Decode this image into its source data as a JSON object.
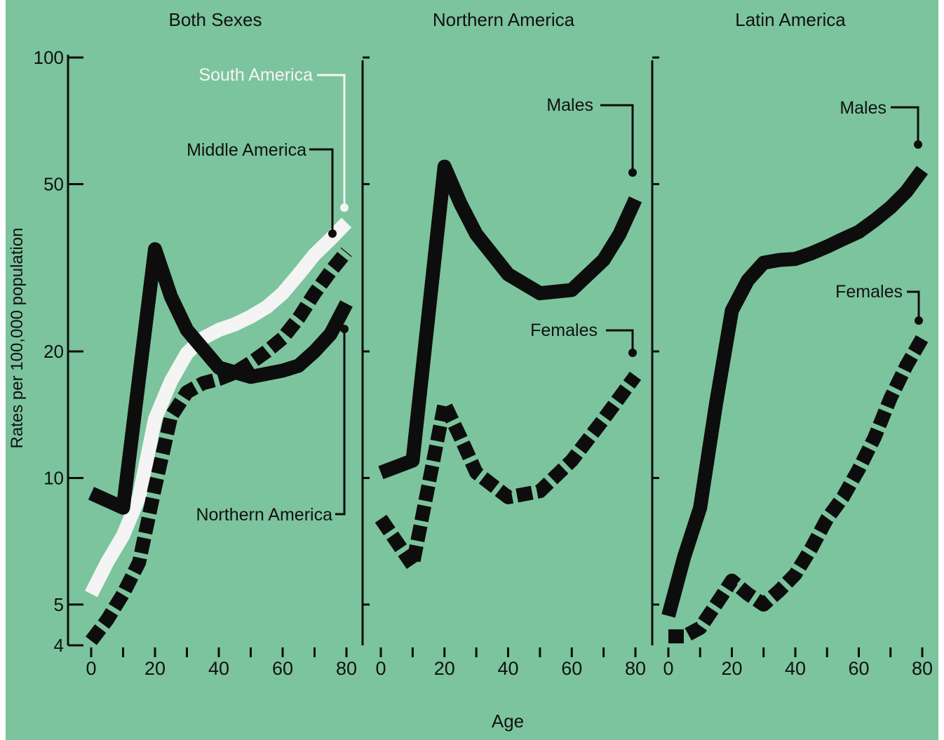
{
  "figure": {
    "x_axis_label": "Age",
    "y_axis_label": "Rates per 100,000 population",
    "background_color": "#7cc49d",
    "ink_color": "#0d0d0d",
    "white_color": "#f4f4f4",
    "dashed_color": "#0d0d0d"
  },
  "chart_data": [
    {
      "type": "line",
      "title": "Both Sexes",
      "xlabel": "Age",
      "ylabel": "Rates per 100,000 population",
      "y_scale": "log",
      "ylim": [
        4,
        100
      ],
      "xlim": [
        0,
        80
      ],
      "x_ticks": [
        0,
        20,
        40,
        60,
        80
      ],
      "x_tick_labels": [
        "0",
        "20",
        "40",
        "60",
        "80"
      ],
      "y_ticks": [
        4,
        5,
        10,
        20,
        50,
        100
      ],
      "y_tick_labels": [
        "4",
        "5",
        "10",
        "20",
        "50",
        "100"
      ],
      "series": [
        {
          "name": "South America",
          "style": "white",
          "x": [
            0,
            5,
            10,
            15,
            20,
            25,
            30,
            35,
            40,
            45,
            50,
            55,
            60,
            65,
            70,
            75,
            80
          ],
          "y": [
            5.3,
            6.3,
            7.3,
            9.0,
            13.8,
            17.0,
            19.8,
            21.5,
            22.5,
            23.2,
            24.2,
            25.5,
            27.5,
            30.5,
            34.0,
            37.0,
            40.5
          ]
        },
        {
          "name": "Middle America",
          "style": "dashed",
          "x": [
            0,
            5,
            10,
            15,
            20,
            25,
            30,
            35,
            40,
            45,
            50,
            55,
            60,
            65,
            70,
            75,
            80
          ],
          "y": [
            4.1,
            4.6,
            5.3,
            6.3,
            9.5,
            14.0,
            16.0,
            16.8,
            17.2,
            17.8,
            18.8,
            20.0,
            21.5,
            24.0,
            27.5,
            31.0,
            34.5
          ]
        },
        {
          "name": "Northern America",
          "style": "solid",
          "x": [
            0,
            10,
            20,
            25,
            30,
            40,
            50,
            60,
            65,
            70,
            75,
            80
          ],
          "y": [
            9.2,
            8.5,
            35.0,
            27.0,
            22.5,
            18.3,
            17.4,
            18.0,
            18.5,
            20.0,
            22.0,
            26.0
          ]
        }
      ],
      "annotations": [
        "South America",
        "Middle America",
        "Northern America"
      ]
    },
    {
      "type": "line",
      "title": "Northern America",
      "xlabel": "Age",
      "y_scale": "log",
      "ylim": [
        4,
        100
      ],
      "xlim": [
        0,
        80
      ],
      "x_ticks": [
        0,
        20,
        40,
        60,
        80
      ],
      "x_tick_labels": [
        "0",
        "20",
        "40",
        "60",
        "80"
      ],
      "series": [
        {
          "name": "Males",
          "style": "solid",
          "x": [
            0,
            10,
            20,
            25,
            30,
            40,
            50,
            60,
            70,
            75,
            80
          ],
          "y": [
            10.3,
            11.0,
            55.0,
            45.0,
            38.0,
            30.5,
            27.5,
            28.0,
            33.0,
            38.0,
            46.0
          ]
        },
        {
          "name": "Females",
          "style": "dashed",
          "x": [
            0,
            10,
            20,
            25,
            30,
            40,
            50,
            60,
            70,
            80
          ],
          "y": [
            8.0,
            6.2,
            15.0,
            12.5,
            10.3,
            9.0,
            9.3,
            11.0,
            13.8,
            17.5
          ]
        }
      ],
      "annotations": [
        "Males",
        "Females"
      ]
    },
    {
      "type": "line",
      "title": "Latin America",
      "xlabel": "Age",
      "y_scale": "log",
      "ylim": [
        4,
        100
      ],
      "xlim": [
        0,
        80
      ],
      "x_ticks": [
        0,
        20,
        40,
        60,
        80
      ],
      "x_tick_labels": [
        "0",
        "20",
        "40",
        "60",
        "80"
      ],
      "series": [
        {
          "name": "Males",
          "style": "solid",
          "x": [
            0,
            5,
            10,
            15,
            20,
            25,
            30,
            35,
            40,
            45,
            50,
            55,
            60,
            65,
            70,
            75,
            80
          ],
          "y": [
            4.7,
            6.5,
            8.5,
            15.0,
            25.0,
            29.5,
            32.5,
            33.0,
            33.2,
            34.2,
            35.5,
            37.0,
            38.5,
            41.0,
            44.0,
            48.0,
            54.0
          ]
        },
        {
          "name": "Females",
          "style": "dashed",
          "x": [
            0,
            5,
            10,
            15,
            20,
            25,
            30,
            35,
            40,
            45,
            50,
            55,
            60,
            65,
            70,
            75,
            80
          ],
          "y": [
            4.2,
            4.2,
            4.4,
            5.0,
            5.7,
            5.3,
            5.0,
            5.4,
            5.9,
            6.8,
            8.0,
            9.0,
            10.5,
            12.5,
            15.5,
            18.5,
            21.5
          ]
        }
      ],
      "annotations": [
        "Males",
        "Females"
      ]
    }
  ]
}
